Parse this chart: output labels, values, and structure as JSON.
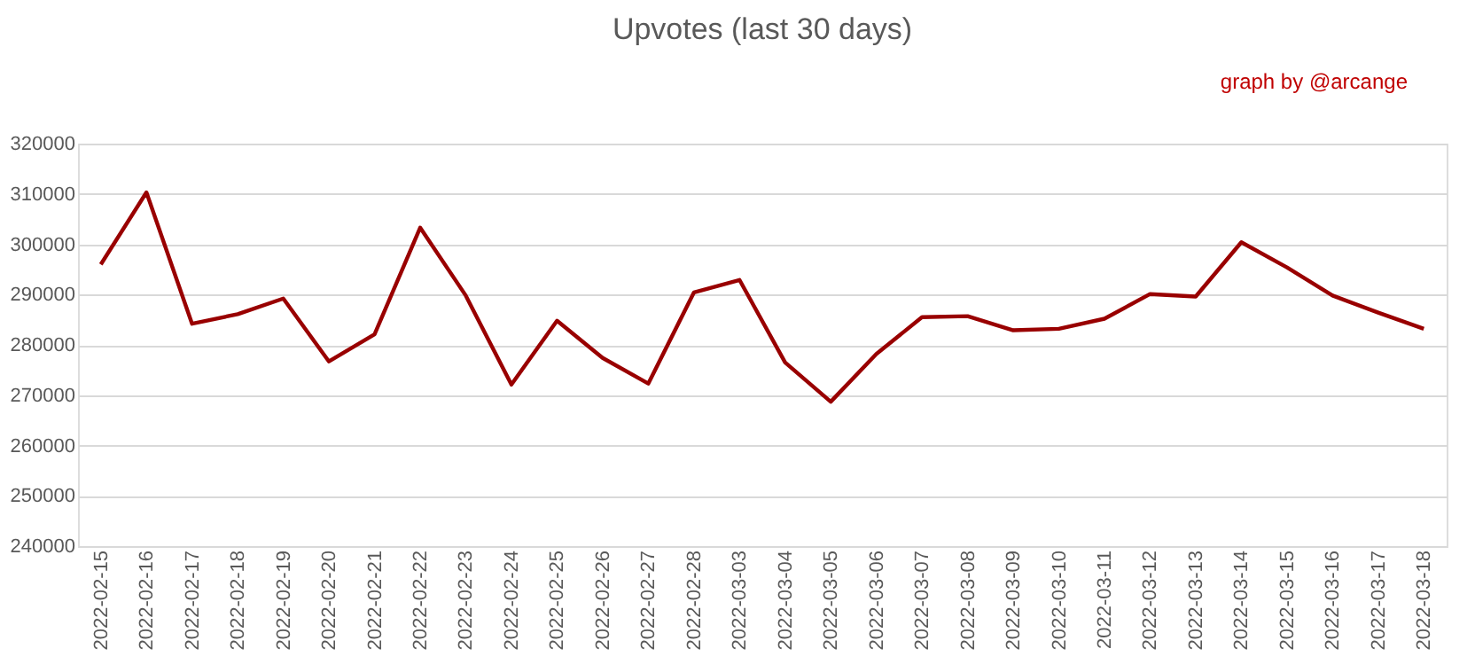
{
  "chart_data": {
    "type": "line",
    "title": "Upvotes (last 30 days)",
    "annotations": [
      "graph by @arcange"
    ],
    "categories": [
      "2022-02-15",
      "2022-02-16",
      "2022-02-17",
      "2022-02-18",
      "2022-02-19",
      "2022-02-20",
      "2022-02-21",
      "2022-02-22",
      "2022-02-23",
      "2022-02-24",
      "2022-02-25",
      "2022-02-26",
      "2022-02-27",
      "2022-02-28",
      "2022-03-03",
      "2022-03-04",
      "2022-03-05",
      "2022-03-06",
      "2022-03-07",
      "2022-03-08",
      "2022-03-09",
      "2022-03-10",
      "2022-03-11",
      "2022-03-12",
      "2022-03-13",
      "2022-03-14",
      "2022-03-15",
      "2022-03-16",
      "2022-03-17",
      "2022-03-18"
    ],
    "series": [
      {
        "color": "#990000",
        "values": [
          296000,
          310300,
          284200,
          286100,
          289200,
          276700,
          282100,
          303300,
          289800,
          272100,
          284800,
          277400,
          272300,
          290400,
          292900,
          276500,
          268700,
          278200,
          285500,
          285700,
          282900,
          283200,
          285200,
          290100,
          289600,
          300400,
          295400,
          289800,
          286400,
          283200
        ]
      }
    ],
    "ylim": [
      240000,
      320000
    ],
    "yticks": [
      240000,
      250000,
      260000,
      270000,
      280000,
      290000,
      300000,
      310000,
      320000
    ],
    "grid": "y",
    "legend": false,
    "marker": "none",
    "line_style": "solid"
  }
}
